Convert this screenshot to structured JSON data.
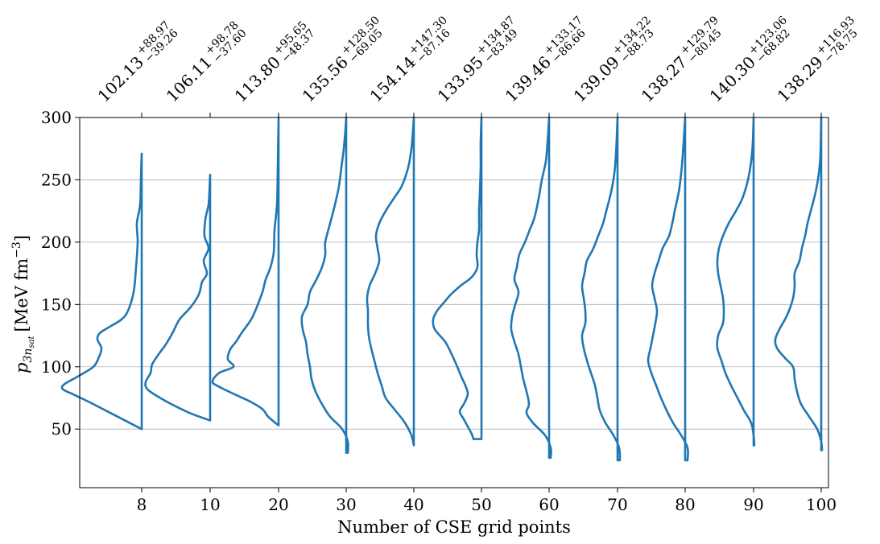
{
  "chart_data": {
    "type": "violin",
    "xlabel": "Number of CSE grid points",
    "ylabel": "p_{3n_sat} [MeV fm^-3]",
    "ylabel_parts": {
      "base": "p",
      "sub": "3n",
      "subsub": "sat",
      "unit": "[MeV fm",
      "unit_exp": "−3",
      "unit_close": "]"
    },
    "ylim": [
      3,
      300
    ],
    "yticks": [
      50,
      100,
      150,
      200,
      250,
      300
    ],
    "grid": "horizontal",
    "color": "#1f77b4",
    "categories": [
      "8",
      "10",
      "20",
      "30",
      "40",
      "50",
      "60",
      "70",
      "80",
      "90",
      "100"
    ],
    "summaries": [
      {
        "median": "102.13",
        "plus": "+88.97",
        "minus": "−39.26"
      },
      {
        "median": "106.11",
        "plus": "+98.78",
        "minus": "−37.60"
      },
      {
        "median": "113.80",
        "plus": "+95.65",
        "minus": "−48.37"
      },
      {
        "median": "135.56",
        "plus": "+128.50",
        "minus": "−69.05"
      },
      {
        "median": "154.14",
        "plus": "+147.30",
        "minus": "−87.16"
      },
      {
        "median": "133.95",
        "plus": "+134.87",
        "minus": "−83.49"
      },
      {
        "median": "139.46",
        "plus": "+133.17",
        "minus": "−86.66"
      },
      {
        "median": "139.09",
        "plus": "+134.22",
        "minus": "−88.73"
      },
      {
        "median": "138.27",
        "plus": "+129.79",
        "minus": "−80.45"
      },
      {
        "median": "140.30",
        "plus": "+123.06",
        "minus": "−68.82"
      },
      {
        "median": "138.29",
        "plus": "+116.93",
        "minus": "−78.75"
      }
    ],
    "distributions": [
      {
        "ymin": 50,
        "ymax": 271,
        "profile": [
          [
            50,
            0
          ],
          [
            60,
            0.3
          ],
          [
            70,
            0.6
          ],
          [
            77,
            0.82
          ],
          [
            82,
            0.98
          ],
          [
            86,
            0.96
          ],
          [
            92,
            0.8
          ],
          [
            100,
            0.6
          ],
          [
            108,
            0.53
          ],
          [
            115,
            0.5
          ],
          [
            122,
            0.55
          ],
          [
            127,
            0.52
          ],
          [
            132,
            0.4
          ],
          [
            138,
            0.25
          ],
          [
            145,
            0.17
          ],
          [
            160,
            0.1
          ],
          [
            180,
            0.07
          ],
          [
            200,
            0.05
          ],
          [
            215,
            0.06
          ],
          [
            230,
            0.02
          ],
          [
            250,
            0.01
          ],
          [
            271,
            0
          ]
        ]
      },
      {
        "ymin": 57,
        "ymax": 254,
        "profile": [
          [
            57,
            0
          ],
          [
            62,
            0.22
          ],
          [
            68,
            0.42
          ],
          [
            75,
            0.62
          ],
          [
            82,
            0.78
          ],
          [
            88,
            0.8
          ],
          [
            95,
            0.74
          ],
          [
            102,
            0.72
          ],
          [
            110,
            0.64
          ],
          [
            118,
            0.55
          ],
          [
            128,
            0.46
          ],
          [
            138,
            0.38
          ],
          [
            148,
            0.24
          ],
          [
            158,
            0.14
          ],
          [
            168,
            0.1
          ],
          [
            175,
            0.04
          ],
          [
            185,
            0.08
          ],
          [
            195,
            0.02
          ],
          [
            205,
            0.07
          ],
          [
            218,
            0.06
          ],
          [
            230,
            0.02
          ],
          [
            240,
            0.01
          ],
          [
            254,
            0
          ]
        ]
      },
      {
        "ymin": 53,
        "ymax": 300,
        "profile": [
          [
            53,
            0
          ],
          [
            60,
            0.13
          ],
          [
            66,
            0.2
          ],
          [
            72,
            0.35
          ],
          [
            78,
            0.55
          ],
          [
            84,
            0.74
          ],
          [
            88,
            0.82
          ],
          [
            95,
            0.74
          ],
          [
            100,
            0.56
          ],
          [
            106,
            0.63
          ],
          [
            114,
            0.6
          ],
          [
            120,
            0.53
          ],
          [
            128,
            0.45
          ],
          [
            138,
            0.34
          ],
          [
            148,
            0.27
          ],
          [
            160,
            0.2
          ],
          [
            170,
            0.16
          ],
          [
            180,
            0.1
          ],
          [
            192,
            0.06
          ],
          [
            210,
            0.05
          ],
          [
            230,
            0.02
          ],
          [
            260,
            0.01
          ],
          [
            300,
            0
          ]
        ]
      },
      {
        "ymin": 31,
        "ymax": 300,
        "profile": [
          [
            31,
            -0.02
          ],
          [
            40,
            -0.02
          ],
          [
            50,
            0.05
          ],
          [
            60,
            0.2
          ],
          [
            70,
            0.3
          ],
          [
            80,
            0.38
          ],
          [
            90,
            0.43
          ],
          [
            100,
            0.45
          ],
          [
            110,
            0.48
          ],
          [
            120,
            0.5
          ],
          [
            130,
            0.54
          ],
          [
            140,
            0.55
          ],
          [
            150,
            0.48
          ],
          [
            160,
            0.45
          ],
          [
            170,
            0.37
          ],
          [
            180,
            0.3
          ],
          [
            190,
            0.26
          ],
          [
            200,
            0.26
          ],
          [
            215,
            0.2
          ],
          [
            230,
            0.14
          ],
          [
            245,
            0.09
          ],
          [
            260,
            0.06
          ],
          [
            275,
            0.03
          ],
          [
            290,
            0.01
          ],
          [
            300,
            0
          ]
        ]
      },
      {
        "ymin": 37,
        "ymax": 300,
        "profile": [
          [
            37,
            0
          ],
          [
            45,
            0.03
          ],
          [
            55,
            0.11
          ],
          [
            65,
            0.23
          ],
          [
            75,
            0.35
          ],
          [
            85,
            0.4
          ],
          [
            95,
            0.45
          ],
          [
            105,
            0.49
          ],
          [
            115,
            0.53
          ],
          [
            125,
            0.56
          ],
          [
            135,
            0.57
          ],
          [
            145,
            0.57
          ],
          [
            155,
            0.58
          ],
          [
            165,
            0.55
          ],
          [
            175,
            0.48
          ],
          [
            185,
            0.43
          ],
          [
            195,
            0.45
          ],
          [
            205,
            0.47
          ],
          [
            215,
            0.43
          ],
          [
            225,
            0.35
          ],
          [
            235,
            0.25
          ],
          [
            245,
            0.15
          ],
          [
            260,
            0.07
          ],
          [
            275,
            0.03
          ],
          [
            290,
            0.01
          ],
          [
            300,
            0
          ]
        ]
      },
      {
        "ymin": 42,
        "ymax": 300,
        "profile": [
          [
            42,
            0.1
          ],
          [
            46,
            0.12
          ],
          [
            52,
            0.17
          ],
          [
            58,
            0.22
          ],
          [
            64,
            0.27
          ],
          [
            70,
            0.22
          ],
          [
            78,
            0.17
          ],
          [
            85,
            0.2
          ],
          [
            92,
            0.25
          ],
          [
            100,
            0.3
          ],
          [
            110,
            0.37
          ],
          [
            120,
            0.45
          ],
          [
            130,
            0.58
          ],
          [
            138,
            0.6
          ],
          [
            145,
            0.55
          ],
          [
            152,
            0.46
          ],
          [
            158,
            0.38
          ],
          [
            165,
            0.26
          ],
          [
            172,
            0.12
          ],
          [
            180,
            0.05
          ],
          [
            190,
            0.06
          ],
          [
            200,
            0.05
          ],
          [
            210,
            0.03
          ],
          [
            225,
            0.03
          ],
          [
            240,
            0.02
          ],
          [
            260,
            0.01
          ],
          [
            280,
            0.01
          ],
          [
            300,
            0
          ]
        ]
      },
      {
        "ymin": 27,
        "ymax": 300,
        "profile": [
          [
            27,
            -0.02
          ],
          [
            35,
            -0.02
          ],
          [
            45,
            0.05
          ],
          [
            55,
            0.2
          ],
          [
            63,
            0.28
          ],
          [
            70,
            0.25
          ],
          [
            80,
            0.28
          ],
          [
            90,
            0.32
          ],
          [
            100,
            0.35
          ],
          [
            110,
            0.38
          ],
          [
            120,
            0.43
          ],
          [
            130,
            0.47
          ],
          [
            140,
            0.46
          ],
          [
            150,
            0.42
          ],
          [
            160,
            0.38
          ],
          [
            170,
            0.43
          ],
          [
            180,
            0.4
          ],
          [
            190,
            0.37
          ],
          [
            200,
            0.3
          ],
          [
            210,
            0.24
          ],
          [
            220,
            0.18
          ],
          [
            235,
            0.13
          ],
          [
            250,
            0.09
          ],
          [
            265,
            0.04
          ],
          [
            280,
            0.02
          ],
          [
            300,
            0
          ]
        ]
      },
      {
        "ymin": 25,
        "ymax": 300,
        "profile": [
          [
            25,
            -0.03
          ],
          [
            35,
            -0.02
          ],
          [
            45,
            0.05
          ],
          [
            55,
            0.15
          ],
          [
            65,
            0.22
          ],
          [
            75,
            0.25
          ],
          [
            85,
            0.28
          ],
          [
            95,
            0.33
          ],
          [
            105,
            0.38
          ],
          [
            115,
            0.42
          ],
          [
            125,
            0.44
          ],
          [
            135,
            0.4
          ],
          [
            145,
            0.4
          ],
          [
            155,
            0.42
          ],
          [
            165,
            0.44
          ],
          [
            175,
            0.41
          ],
          [
            185,
            0.38
          ],
          [
            195,
            0.3
          ],
          [
            205,
            0.24
          ],
          [
            215,
            0.18
          ],
          [
            225,
            0.14
          ],
          [
            240,
            0.08
          ],
          [
            255,
            0.04
          ],
          [
            270,
            0.02
          ],
          [
            300,
            0
          ]
        ]
      },
      {
        "ymin": 25,
        "ymax": 300,
        "profile": [
          [
            25,
            -0.03
          ],
          [
            35,
            -0.03
          ],
          [
            45,
            0.05
          ],
          [
            55,
            0.15
          ],
          [
            65,
            0.23
          ],
          [
            75,
            0.3
          ],
          [
            85,
            0.36
          ],
          [
            95,
            0.42
          ],
          [
            105,
            0.46
          ],
          [
            115,
            0.43
          ],
          [
            125,
            0.4
          ],
          [
            135,
            0.37
          ],
          [
            145,
            0.35
          ],
          [
            155,
            0.38
          ],
          [
            165,
            0.41
          ],
          [
            175,
            0.38
          ],
          [
            185,
            0.33
          ],
          [
            195,
            0.28
          ],
          [
            205,
            0.2
          ],
          [
            215,
            0.16
          ],
          [
            225,
            0.13
          ],
          [
            240,
            0.08
          ],
          [
            255,
            0.05
          ],
          [
            270,
            0.03
          ],
          [
            300,
            0
          ]
        ]
      },
      {
        "ymin": 37,
        "ymax": 300,
        "profile": [
          [
            37,
            -0.01
          ],
          [
            45,
            0
          ],
          [
            55,
            0.03
          ],
          [
            65,
            0.12
          ],
          [
            75,
            0.2
          ],
          [
            85,
            0.28
          ],
          [
            95,
            0.35
          ],
          [
            105,
            0.4
          ],
          [
            115,
            0.45
          ],
          [
            125,
            0.44
          ],
          [
            135,
            0.38
          ],
          [
            145,
            0.37
          ],
          [
            155,
            0.38
          ],
          [
            165,
            0.41
          ],
          [
            175,
            0.44
          ],
          [
            185,
            0.45
          ],
          [
            195,
            0.43
          ],
          [
            205,
            0.38
          ],
          [
            215,
            0.31
          ],
          [
            225,
            0.22
          ],
          [
            235,
            0.14
          ],
          [
            250,
            0.07
          ],
          [
            265,
            0.03
          ],
          [
            280,
            0.01
          ],
          [
            300,
            0
          ]
        ]
      },
      {
        "ymin": 33,
        "ymax": 300,
        "profile": [
          [
            33,
            -0.01
          ],
          [
            40,
            0
          ],
          [
            50,
            0.05
          ],
          [
            60,
            0.15
          ],
          [
            70,
            0.25
          ],
          [
            80,
            0.3
          ],
          [
            90,
            0.33
          ],
          [
            100,
            0.35
          ],
          [
            107,
            0.45
          ],
          [
            115,
            0.55
          ],
          [
            122,
            0.57
          ],
          [
            130,
            0.52
          ],
          [
            138,
            0.45
          ],
          [
            145,
            0.4
          ],
          [
            155,
            0.35
          ],
          [
            165,
            0.33
          ],
          [
            175,
            0.33
          ],
          [
            185,
            0.27
          ],
          [
            195,
            0.24
          ],
          [
            205,
            0.2
          ],
          [
            215,
            0.17
          ],
          [
            225,
            0.13
          ],
          [
            240,
            0.07
          ],
          [
            255,
            0.03
          ],
          [
            270,
            0.01
          ],
          [
            300,
            0
          ]
        ]
      }
    ]
  }
}
